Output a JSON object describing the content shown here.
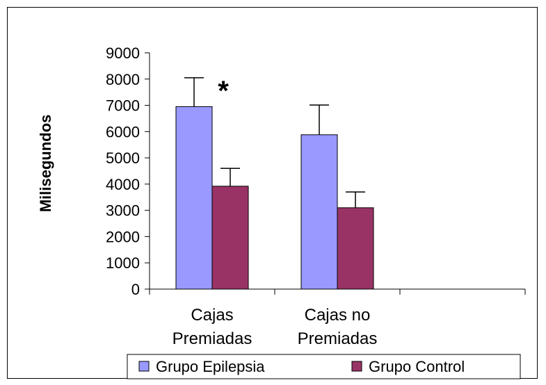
{
  "chart_data": {
    "type": "bar",
    "categories": [
      "Cajas Premiadas",
      "Cajas no Premiadas",
      ""
    ],
    "category_lines": [
      [
        "Cajas",
        "Premiadas"
      ],
      [
        "Cajas no",
        "Premiadas"
      ],
      []
    ],
    "series": [
      {
        "name": "Grupo Epilepsia",
        "color": "#9999ff",
        "values": [
          6950,
          5880,
          null
        ],
        "errors": [
          1100,
          1130,
          null
        ]
      },
      {
        "name": "Grupo Control",
        "color": "#993366",
        "values": [
          3920,
          3100,
          null
        ],
        "errors": [
          680,
          600,
          null
        ]
      }
    ],
    "ylabel": "Milisegundos",
    "ylim": [
      0,
      9000
    ],
    "yticks": [
      0,
      1000,
      2000,
      3000,
      4000,
      5000,
      6000,
      7000,
      8000,
      9000
    ],
    "annotation": "*",
    "grid": false,
    "legend_position": "bottom"
  }
}
